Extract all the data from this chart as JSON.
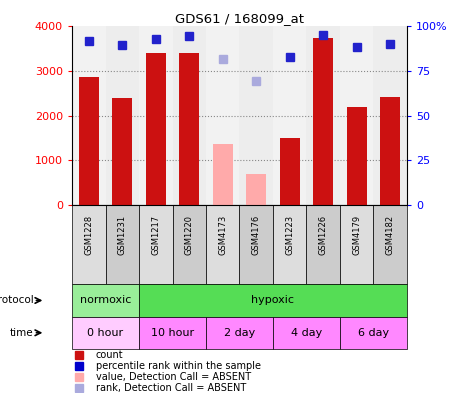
{
  "title": "GDS61 / 168099_at",
  "samples": [
    "GSM1228",
    "GSM1231",
    "GSM1217",
    "GSM1220",
    "GSM4173",
    "GSM4176",
    "GSM1223",
    "GSM1226",
    "GSM4179",
    "GSM4182"
  ],
  "bar_values": [
    2850,
    2380,
    3400,
    3400,
    null,
    null,
    1500,
    3720,
    2180,
    2420
  ],
  "bar_color_present": "#cc1111",
  "bar_color_absent": "#ffaaaa",
  "absent_bar_values": [
    null,
    null,
    null,
    null,
    1360,
    700,
    null,
    null,
    null,
    null
  ],
  "rank_values": [
    3650,
    3580,
    3700,
    3780,
    null,
    null,
    3300,
    3800,
    3530,
    3590
  ],
  "rank_absent": [
    null,
    null,
    null,
    null,
    3260,
    2770,
    null,
    null,
    null,
    null
  ],
  "ylim_left": [
    0,
    4000
  ],
  "ylim_right": [
    0,
    100
  ],
  "yticks_left": [
    0,
    1000,
    2000,
    3000,
    4000
  ],
  "yticks_right": [
    0,
    25,
    50,
    75,
    100
  ],
  "ytick_labels_left": [
    "0",
    "1000",
    "2000",
    "3000",
    "4000"
  ],
  "ytick_labels_right": [
    "0",
    "25",
    "50",
    "75",
    "100%"
  ],
  "proto_ranges": [
    [
      0,
      2
    ],
    [
      2,
      10
    ]
  ],
  "proto_labels": [
    "normoxic",
    "hypoxic"
  ],
  "proto_colors": [
    "#99ee99",
    "#55dd55"
  ],
  "time_ranges": [
    [
      0,
      2
    ],
    [
      2,
      4
    ],
    [
      4,
      6
    ],
    [
      6,
      8
    ],
    [
      8,
      10
    ]
  ],
  "time_labels": [
    "0 hour",
    "10 hour",
    "2 day",
    "4 day",
    "6 day"
  ],
  "time_color_light": "#ffccff",
  "time_color_dark": "#ff88ff",
  "legend_colors": [
    "#cc1111",
    "#0000cc",
    "#ffaaaa",
    "#aaaadd"
  ],
  "legend_labels": [
    "count",
    "percentile rank within the sample",
    "value, Detection Call = ABSENT",
    "rank, Detection Call = ABSENT"
  ]
}
